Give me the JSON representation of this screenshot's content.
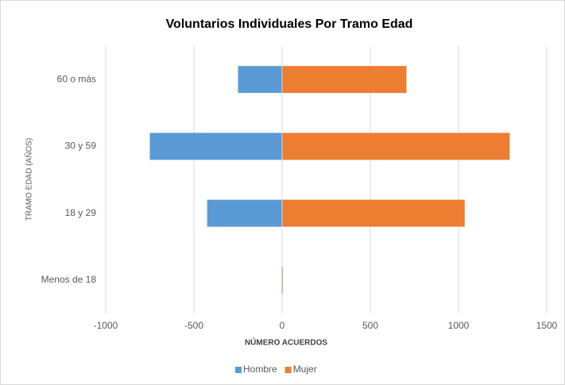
{
  "chart_data": {
    "type": "bar",
    "orientation": "horizontal",
    "title": "Voluntarios Individuales Por Tramo Edad",
    "x_label": "NÚMERO ACUERDOS",
    "y_label": "TRAMO EDAD (AÑOS)",
    "categories": [
      "Menos de 18",
      "18 y 29",
      "30 y 59",
      "60 o más"
    ],
    "series": [
      {
        "name": "Hombre",
        "color": "#5b9bd5",
        "values": [
          -3,
          -425,
          -750,
          -250
        ]
      },
      {
        "name": "Mujer",
        "color": "#ed7d31",
        "values": [
          5,
          1035,
          1290,
          705
        ]
      }
    ],
    "xlim": [
      -1000,
      1500
    ],
    "xticks": [
      -1000,
      -500,
      0,
      500,
      1000,
      1500
    ],
    "grid": true,
    "legend": "bottom"
  }
}
